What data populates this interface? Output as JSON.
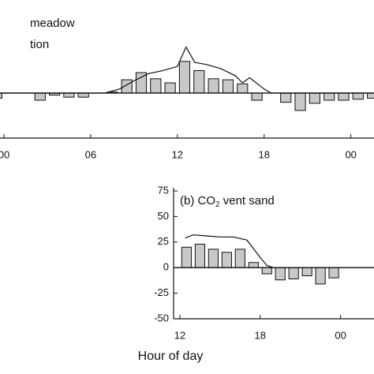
{
  "chart_data": [
    {
      "type": "bar",
      "annotations": [
        "meadow",
        "tion"
      ],
      "xlim": [
        -0.27,
        25.6
      ],
      "ylim": [
        -44,
        91
      ],
      "xticks": [
        {
          "value": 0,
          "label": "00"
        },
        {
          "value": 6,
          "label": "06"
        },
        12,
        18,
        {
          "value": 24,
          "label": "00"
        }
      ],
      "series": [
        {
          "type": "bar",
          "color": "#c8c8c8",
          "x": [
            -0.5,
            2.5,
            3.5,
            4.5,
            5.5,
            7.5,
            8.5,
            9.5,
            10.5,
            11.5,
            12.5,
            13.5,
            14.5,
            15.5,
            16.5,
            17.5,
            19.5,
            20.5,
            21.5,
            22.5,
            23.5,
            24.5,
            25.5
          ],
          "values": [
            -5,
            -7,
            -2,
            -4,
            -4,
            1,
            13,
            20,
            14,
            10,
            31,
            22,
            14,
            13,
            9,
            -7,
            -9,
            -17,
            -10,
            -7,
            -7,
            -6,
            -5
          ]
        },
        {
          "type": "line",
          "color": "#111111",
          "x": [
            -0.27,
            7,
            8,
            9,
            10,
            11,
            12,
            12.6,
            13.2,
            14,
            15,
            16,
            16.5,
            17,
            18,
            18.5,
            25.6
          ],
          "values": [
            0,
            0,
            4,
            12,
            19,
            22,
            26,
            45,
            30,
            28,
            24,
            17,
            10,
            15,
            4,
            0,
            0
          ]
        }
      ]
    },
    {
      "type": "bar",
      "title_parts": [
        "(b) CO",
        "2",
        " vent sand"
      ],
      "x_label": "Hour of day",
      "xlim": [
        11.53,
        26.5
      ],
      "ylim": [
        -50,
        75
      ],
      "xticks": [
        12,
        18,
        {
          "value": 24,
          "label": "00"
        }
      ],
      "yticks": [
        75,
        50,
        25,
        0,
        -25,
        -50
      ],
      "series": [
        {
          "type": "bar",
          "color": "#c8c8c8",
          "x": [
            12.5,
            13.5,
            14.5,
            15.5,
            16.5,
            17.5,
            18.5,
            19.5,
            20.5,
            21.5,
            22.5,
            23.5
          ],
          "values": [
            20,
            23,
            18,
            15,
            18,
            5,
            -6,
            -12,
            -11,
            -8,
            -16,
            -10
          ]
        },
        {
          "type": "line",
          "color": "#111111",
          "x": [
            12.4,
            13,
            14,
            15,
            16,
            17,
            18,
            18.5,
            19,
            26.5
          ],
          "values": [
            29,
            32,
            31,
            30,
            30,
            27,
            10,
            2,
            0,
            0
          ]
        }
      ]
    }
  ]
}
